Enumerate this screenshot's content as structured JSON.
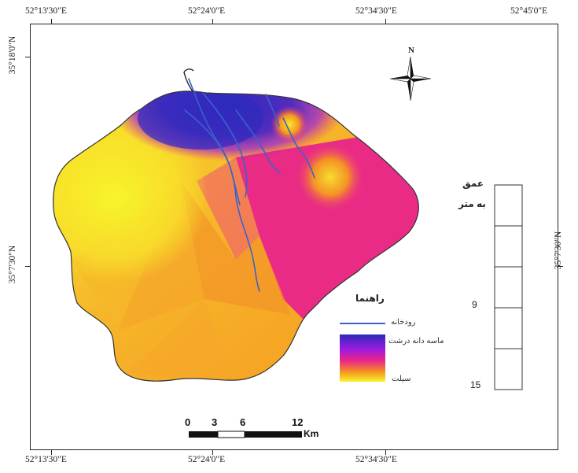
{
  "coords": {
    "top": [
      "52°13'30\"E",
      "52°24'0\"E",
      "52°34'30\"E",
      "52°45'0\"E"
    ],
    "bottom": [
      "52°13'30\"E",
      "52°24'0\"E",
      "52°34'30\"E"
    ],
    "left": [
      "35°18'0\"N",
      "35°7'30\"N"
    ],
    "right": [
      "35°7'30\"N"
    ]
  },
  "north_label": "N",
  "depth_bar": {
    "title": "عمق",
    "unit": "به متر",
    "values": [
      "9",
      "15"
    ]
  },
  "legend": {
    "title": "راهنما",
    "river": "رودخانه",
    "grain_high": "ماسه دانه درشت",
    "grain_low": "سیلت"
  },
  "scale": {
    "labels": [
      "0",
      "3",
      "6",
      "12"
    ],
    "unit": "Km"
  },
  "colors": {
    "deep_blue": "#2b2ab8",
    "purple": "#9a1be0",
    "magenta": "#e8248a",
    "orange": "#f6981f",
    "yellow": "#f7f52a",
    "river": "#3a62c9"
  }
}
